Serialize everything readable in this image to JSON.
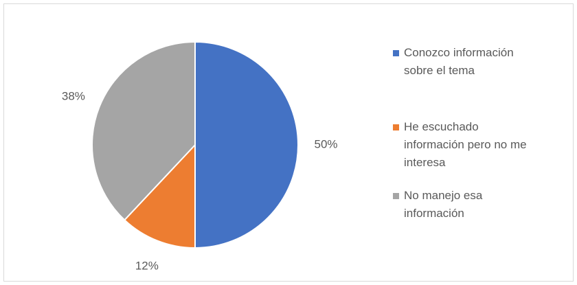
{
  "chart_data": {
    "type": "pie",
    "categories": [
      "Conozco información sobre el tema",
      "He escuchado información pero no me interesa",
      "No manejo esa información"
    ],
    "values": [
      50,
      12,
      38
    ],
    "value_labels": [
      "50%",
      "12%",
      "38%"
    ],
    "colors": [
      "#4472c4",
      "#ed7d31",
      "#a5a5a5"
    ],
    "legend": "right"
  }
}
